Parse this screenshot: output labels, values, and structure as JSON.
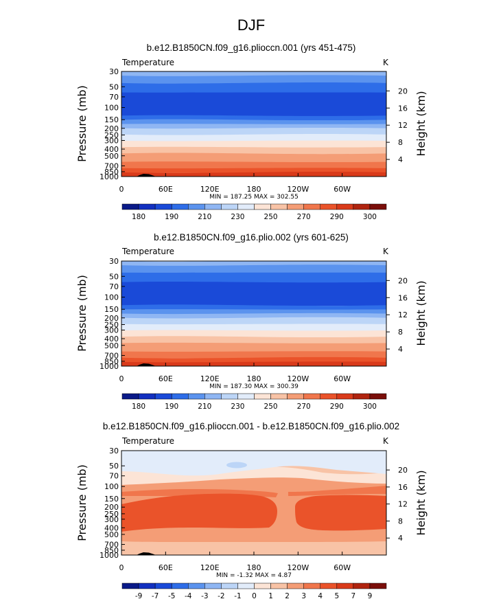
{
  "page_title": "DJF",
  "chart_data": [
    {
      "type": "heatmap",
      "title": "b.e12.B1850CN.f09_g16.plioccn.001 (yrs 451-475)",
      "left_label": "Temperature",
      "right_label": "K",
      "ylabel": "Pressure  (mb)",
      "ylabel_right": "Height  (km)",
      "y_ticks": [
        "30",
        "50",
        "70",
        "100",
        "150",
        "200",
        "250",
        "300",
        "400",
        "500",
        "700",
        "850",
        "1000"
      ],
      "y_right_ticks": [
        "20",
        "16",
        "12",
        "8",
        "4"
      ],
      "x_ticks": [
        "0",
        "60E",
        "120E",
        "180",
        "120W",
        "60W"
      ],
      "stats": "MIN = 187.25   MAX = 302.55",
      "colorbar_labels": [
        "180",
        "190",
        "210",
        "230",
        "250",
        "270",
        "290",
        "300"
      ],
      "colorbar_colors": [
        "#0a1a88",
        "#1230c0",
        "#1a4ad8",
        "#2e6de8",
        "#5b93ee",
        "#8fb6f3",
        "#bcd5f7",
        "#e2ecfa",
        "#fce4d6",
        "#f8c3a6",
        "#f49d76",
        "#f0764c",
        "#ea532a",
        "#d93a1a",
        "#b0240f",
        "#7a0e0a"
      ],
      "band_colors": [
        "#8fb6f3",
        "#5b93ee",
        "#2e6de8",
        "#1a4ad8",
        "#2e6de8",
        "#5b93ee",
        "#8fb6f3",
        "#bcd5f7",
        "#e2ecfa",
        "#fce4d6",
        "#f8c3a6",
        "#f49d76",
        "#f0764c",
        "#ea532a",
        "#d93a1a"
      ],
      "range": [
        187.25,
        302.55
      ]
    },
    {
      "type": "heatmap",
      "title": "b.e12.B1850CN.f09_g16.plio.002 (yrs 601-625)",
      "left_label": "Temperature",
      "right_label": "K",
      "ylabel": "Pressure  (mb)",
      "ylabel_right": "Height  (km)",
      "y_ticks": [
        "30",
        "50",
        "70",
        "100",
        "150",
        "200",
        "250",
        "300",
        "400",
        "500",
        "700",
        "850",
        "1000"
      ],
      "y_right_ticks": [
        "20",
        "16",
        "12",
        "8",
        "4"
      ],
      "x_ticks": [
        "0",
        "60E",
        "120E",
        "180",
        "120W",
        "60W"
      ],
      "stats": "MIN = 187.30   MAX = 300.39",
      "colorbar_labels": [
        "180",
        "190",
        "210",
        "230",
        "250",
        "270",
        "290",
        "300"
      ],
      "colorbar_colors": [
        "#0a1a88",
        "#1230c0",
        "#1a4ad8",
        "#2e6de8",
        "#5b93ee",
        "#8fb6f3",
        "#bcd5f7",
        "#e2ecfa",
        "#fce4d6",
        "#f8c3a6",
        "#f49d76",
        "#f0764c",
        "#ea532a",
        "#d93a1a",
        "#b0240f",
        "#7a0e0a"
      ],
      "band_colors": [
        "#8fb6f3",
        "#5b93ee",
        "#2e6de8",
        "#1a4ad8",
        "#2e6de8",
        "#5b93ee",
        "#8fb6f3",
        "#bcd5f7",
        "#e2ecfa",
        "#fce4d6",
        "#f8c3a6",
        "#f49d76",
        "#f0764c",
        "#ea532a",
        "#d93a1a"
      ],
      "range": [
        187.3,
        300.39
      ]
    },
    {
      "type": "heatmap",
      "title": "b.e12.B1850CN.f09_g16.plioccn.001 - b.e12.B1850CN.f09_g16.plio.002",
      "left_label": "Temperature",
      "right_label": "K",
      "ylabel": "Pressure  (mb)",
      "ylabel_right": "Height  (km)",
      "y_ticks": [
        "30",
        "50",
        "70",
        "100",
        "150",
        "200",
        "250",
        "300",
        "400",
        "500",
        "700",
        "850",
        "1000"
      ],
      "y_right_ticks": [
        "20",
        "16",
        "12",
        "8",
        "4"
      ],
      "x_ticks": [
        "0",
        "60E",
        "120E",
        "180",
        "120W",
        "60W"
      ],
      "stats": "MIN =  -1.32   MAX =   4.87",
      "colorbar_labels": [
        "-9",
        "-7",
        "-5",
        "-4",
        "-3",
        "-2",
        "-1",
        "0",
        "1",
        "2",
        "3",
        "4",
        "5",
        "7",
        "9"
      ],
      "colorbar_colors": [
        "#0a1a88",
        "#1230c0",
        "#1a4ad8",
        "#2e6de8",
        "#5b93ee",
        "#8fb6f3",
        "#bcd5f7",
        "#e2ecfa",
        "#fce4d6",
        "#f8c3a6",
        "#f49d76",
        "#f0764c",
        "#ea532a",
        "#d93a1a",
        "#b0240f",
        "#7a0e0a"
      ],
      "band_colors": [
        "#e2ecfa",
        "#fce4d6",
        "#f8c3a6",
        "#f49d76",
        "#ea532a",
        "#f0764c",
        "#f49d76",
        "#f8c3a6"
      ],
      "range": [
        -1.32,
        4.87
      ]
    }
  ]
}
